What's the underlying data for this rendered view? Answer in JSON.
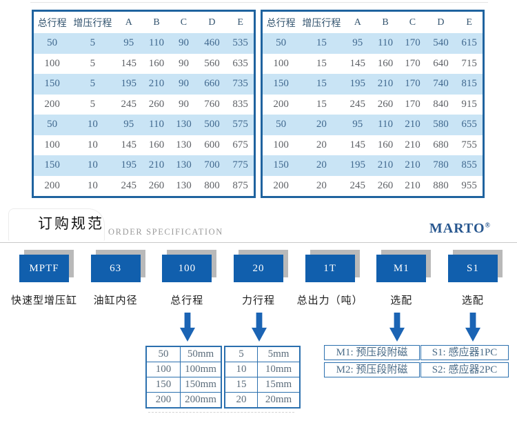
{
  "colors": {
    "accent_blue": "#115fad",
    "table_border_blue": "#1f639f",
    "row_band_blue": "#c9e4f5",
    "brand_blue": "#28578f",
    "arrow_blue": "#1b64b4",
    "shadow_gray": "#b9b9b9"
  },
  "spec_tables": {
    "headers": [
      "总行程",
      "增压行程",
      "A",
      "B",
      "C",
      "D",
      "E"
    ],
    "left_rows": [
      [
        "50",
        "5",
        "95",
        "110",
        "90",
        "460",
        "535"
      ],
      [
        "100",
        "5",
        "145",
        "160",
        "90",
        "560",
        "635"
      ],
      [
        "150",
        "5",
        "195",
        "210",
        "90",
        "660",
        "735"
      ],
      [
        "200",
        "5",
        "245",
        "260",
        "90",
        "760",
        "835"
      ],
      [
        "50",
        "10",
        "95",
        "110",
        "130",
        "500",
        "575"
      ],
      [
        "100",
        "10",
        "145",
        "160",
        "130",
        "600",
        "675"
      ],
      [
        "150",
        "10",
        "195",
        "210",
        "130",
        "700",
        "775"
      ],
      [
        "200",
        "10",
        "245",
        "260",
        "130",
        "800",
        "875"
      ]
    ],
    "right_rows": [
      [
        "50",
        "15",
        "95",
        "110",
        "170",
        "540",
        "615"
      ],
      [
        "100",
        "15",
        "145",
        "160",
        "170",
        "640",
        "715"
      ],
      [
        "150",
        "15",
        "195",
        "210",
        "170",
        "740",
        "815"
      ],
      [
        "200",
        "15",
        "245",
        "260",
        "170",
        "840",
        "915"
      ],
      [
        "50",
        "20",
        "95",
        "110",
        "210",
        "580",
        "655"
      ],
      [
        "100",
        "20",
        "145",
        "160",
        "210",
        "680",
        "755"
      ],
      [
        "150",
        "20",
        "195",
        "210",
        "210",
        "780",
        "855"
      ],
      [
        "200",
        "20",
        "245",
        "260",
        "210",
        "880",
        "955"
      ]
    ]
  },
  "order_section": {
    "title_cn": "订购规范",
    "title_en": "ORDER SPECIFICATION",
    "brand": "MARTO",
    "brand_reg": "®",
    "codes": [
      {
        "code": "MPTF",
        "label": "快速型增压缸"
      },
      {
        "code": "63",
        "label": "油缸内径"
      },
      {
        "code": "100",
        "label": "总行程"
      },
      {
        "code": "20",
        "label": "力行程"
      },
      {
        "code": "1T",
        "label": "总出力（吨）"
      },
      {
        "code": "M1",
        "label": "选配"
      },
      {
        "code": "S1",
        "label": "选配"
      }
    ],
    "stroke_options": [
      [
        "50",
        "50mm"
      ],
      [
        "100",
        "100mm"
      ],
      [
        "150",
        "150mm"
      ],
      [
        "200",
        "200mm"
      ]
    ],
    "force_stroke_options": [
      [
        "5",
        "5mm"
      ],
      [
        "10",
        "10mm"
      ],
      [
        "15",
        "15mm"
      ],
      [
        "20",
        "20mm"
      ]
    ],
    "m_options": [
      "M1: 预压段附磁",
      "M2: 预压段附磁"
    ],
    "s_options": [
      "S1: 感应器1PC",
      "S2: 感应器2PC"
    ]
  }
}
